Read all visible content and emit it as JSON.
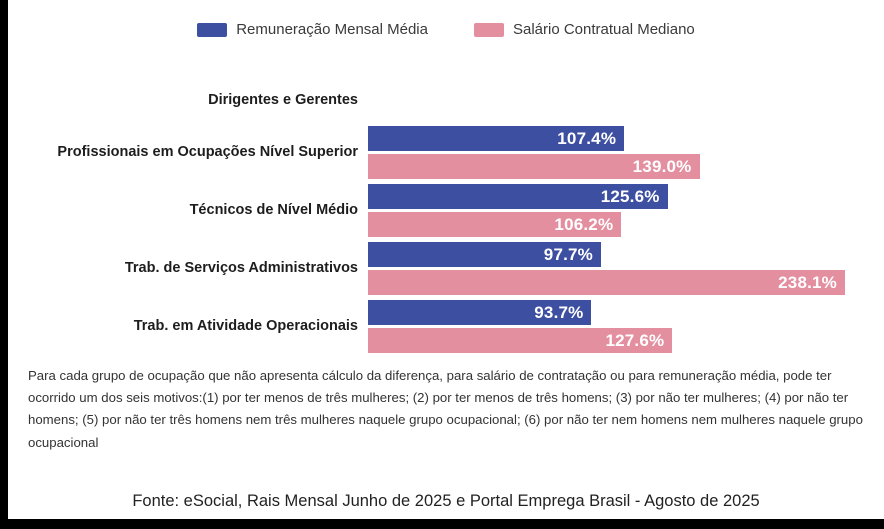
{
  "legend": {
    "items": [
      {
        "label": "Remuneração Mensal Média",
        "color": "#3D4FA1"
      },
      {
        "label": "Salário Contratual Mediano",
        "color": "#E48FA0"
      }
    ]
  },
  "chart_data": {
    "type": "bar",
    "orientation": "horizontal",
    "categories": [
      "Dirigentes e Gerentes",
      "Profissionais em Ocupações Nível Superior",
      "Técnicos de Nível Médio",
      "Trab. de Serviços Administrativos",
      "Trab. em Atividade Operacionais"
    ],
    "series": [
      {
        "name": "Remuneração Mensal Média",
        "color": "#3D4FA1",
        "values": [
          null,
          107.4,
          125.6,
          97.7,
          93.7
        ],
        "labels": [
          null,
          "107.4%",
          "125.6%",
          "97.7%",
          "93.7%"
        ]
      },
      {
        "name": "Salário Contratual Mediano",
        "color": "#E48FA0",
        "values": [
          null,
          139.0,
          106.2,
          238.1,
          127.6
        ],
        "labels": [
          null,
          "139.0%",
          "106.2%",
          "238.1%",
          "127.6%"
        ]
      }
    ],
    "axis_max_percent": 200,
    "value_suffix": "%",
    "grid": false,
    "legend_position": "top"
  },
  "footnote": "Para cada grupo de ocupação que não apresenta cálculo da diferença, para salário de contratação ou para remuneração média, pode ter ocorrido um dos seis motivos:(1) por ter menos de três mulheres; (2) por ter menos de três homens; (3) por não ter mulheres; (4) por não ter homens; (5) por não ter três homens nem três mulheres naquele grupo ocupacional; (6) por não ter nem homens nem mulheres naquele grupo ocupacional",
  "source": "Fonte: eSocial, Rais Mensal Junho de 2025 e Portal Emprega Brasil - Agosto de 2025"
}
